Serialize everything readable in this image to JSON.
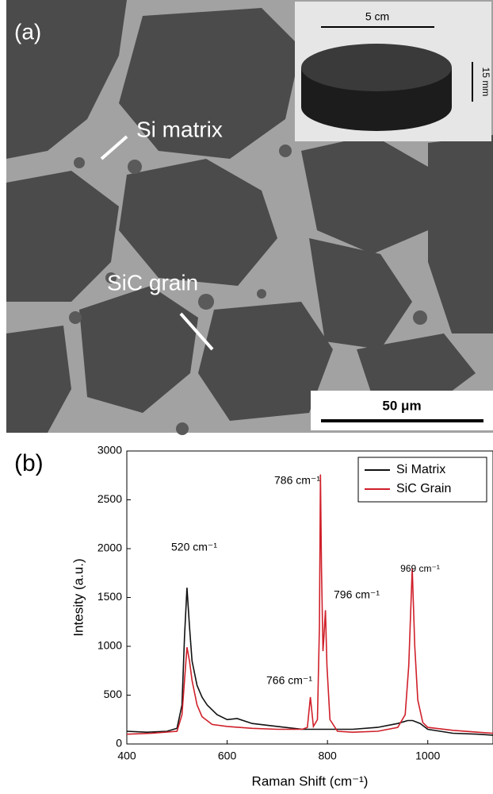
{
  "panel_a": {
    "label": "(a)",
    "width_label": "5 cm",
    "height_label": "15 mm",
    "matrix_label": "Si matrix",
    "grain_label": "SiC grain",
    "scale_label": "50 μm"
  },
  "chart_data": {
    "type": "line",
    "panel_label": "(b)",
    "xlabel": "Raman Shift (cm⁻¹)",
    "ylabel": "Intesity (a.u.)",
    "xlim": [
      400,
      1130
    ],
    "xticks": [
      400,
      600,
      800,
      1000
    ],
    "ylim": [
      0,
      3000
    ],
    "yticks": [
      0,
      500,
      1000,
      1500,
      2000,
      2500,
      3000
    ],
    "legend": "upper right",
    "annotations": [
      "520 cm⁻¹",
      "786 cm⁻¹",
      "766 cm⁻¹",
      "796 cm⁻¹",
      "969 cm⁻¹"
    ],
    "series": [
      {
        "name": "Si Matrix",
        "color": "#111111",
        "x": [
          400,
          440,
          480,
          500,
          510,
          515,
          520,
          525,
          530,
          540,
          550,
          560,
          580,
          600,
          620,
          650,
          700,
          750,
          800,
          850,
          900,
          940,
          960,
          970,
          985,
          1000,
          1050,
          1100,
          1130
        ],
        "values": [
          130,
          120,
          130,
          160,
          400,
          1100,
          1600,
          1200,
          850,
          600,
          480,
          400,
          300,
          250,
          260,
          210,
          180,
          150,
          150,
          150,
          170,
          210,
          240,
          240,
          210,
          150,
          110,
          100,
          90
        ]
      },
      {
        "name": "SiC Grain",
        "color": "#d0202a",
        "x": [
          400,
          450,
          500,
          510,
          515,
          520,
          525,
          530,
          540,
          550,
          570,
          600,
          650,
          700,
          750,
          760,
          766,
          772,
          780,
          784,
          786,
          788,
          791,
          793,
          796,
          799,
          805,
          820,
          850,
          900,
          940,
          955,
          962,
          969,
          974,
          980,
          990,
          1000,
          1050,
          1100,
          1130
        ],
        "values": [
          100,
          110,
          130,
          300,
          650,
          990,
          850,
          650,
          400,
          280,
          200,
          180,
          160,
          150,
          150,
          170,
          480,
          180,
          250,
          1200,
          2760,
          1800,
          950,
          1100,
          1370,
          800,
          250,
          130,
          120,
          130,
          170,
          300,
          800,
          1800,
          1000,
          450,
          220,
          170,
          140,
          120,
          110
        ]
      }
    ]
  }
}
